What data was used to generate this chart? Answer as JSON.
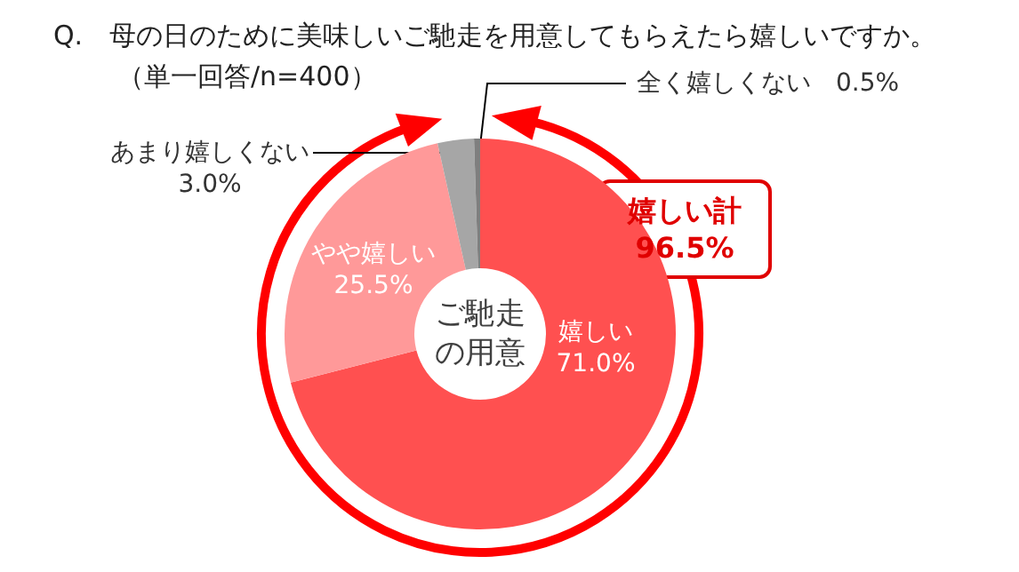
{
  "chart_data": {
    "type": "donut",
    "title": "Q.　母の日のために美味しいご馳走を用意してもらえたら嬉しいですか。",
    "subtitle": "（単一回答/n=400）",
    "categories": [
      "嬉しい",
      "やや嬉しい",
      "あまり嬉しくない",
      "全く嬉しくない"
    ],
    "values": [
      71.0,
      25.5,
      3.0,
      0.5
    ],
    "value_labels": [
      "71.0%",
      "25.5%",
      "3.0%",
      "0.5%"
    ],
    "colors": [
      "#ff5050",
      "#ff9999",
      "#a6a6a6",
      "#7f7f7f"
    ],
    "annotations": [
      "ご馳走の用意",
      "嬉しい計 96.5%"
    ]
  }
}
